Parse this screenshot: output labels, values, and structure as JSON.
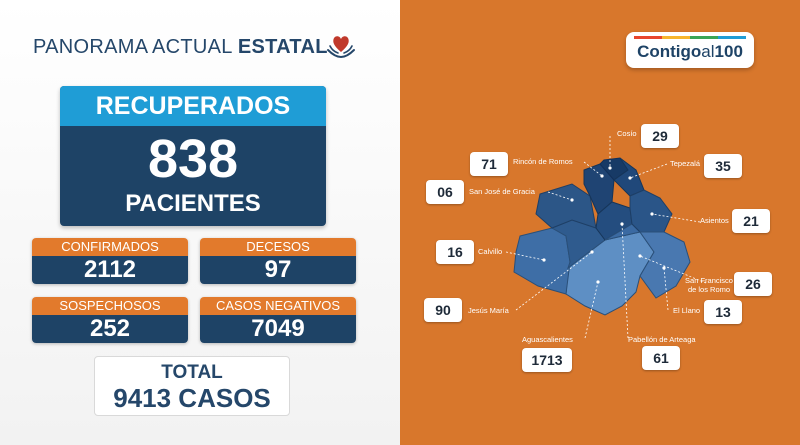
{
  "header": {
    "title_regular": "PANORAMA ACTUAL",
    "title_bold": "ESTATAL"
  },
  "recuperados": {
    "label": "RECUPERADOS",
    "value": "838",
    "unit": "PACIENTES"
  },
  "stats": {
    "confirmados": {
      "label": "CONFIRMADOS",
      "value": "2112"
    },
    "decesos": {
      "label": "DECESOS",
      "value": "97"
    },
    "sospechosos": {
      "label": "SOSPECHOSOS",
      "value": "252"
    },
    "negativos": {
      "label": "CASOS NEGATIVOS",
      "value": "7049"
    }
  },
  "total": {
    "label": "TOTAL",
    "value": "9413 CASOS"
  },
  "logo": {
    "bold": "Contigo",
    "light": "al",
    "number": "100"
  },
  "municipios": [
    {
      "name": "Cosío",
      "value": "29"
    },
    {
      "name": "Rincón de Romos",
      "value": "71"
    },
    {
      "name": "Tepezalá",
      "value": "35"
    },
    {
      "name": "San José de Gracia",
      "value": "06"
    },
    {
      "name": "Asientos",
      "value": "21"
    },
    {
      "name": "Calvillo",
      "value": "16"
    },
    {
      "name": "San Francisco",
      "name_line2": "de los Romo",
      "value": "26"
    },
    {
      "name": "Jesús María",
      "value": "90"
    },
    {
      "name": "El Llano",
      "value": "13"
    },
    {
      "name": "Aguascalientes",
      "value": "1713"
    },
    {
      "name": "Pabellón de Arteaga",
      "value": "61"
    }
  ],
  "colors": {
    "navy": "#1e4366",
    "blue": "#1f9dd6",
    "orange": "#e27a2c",
    "panel_orange": "#d8772c"
  },
  "icons": {
    "title_icon": "heart-hands-icon"
  }
}
